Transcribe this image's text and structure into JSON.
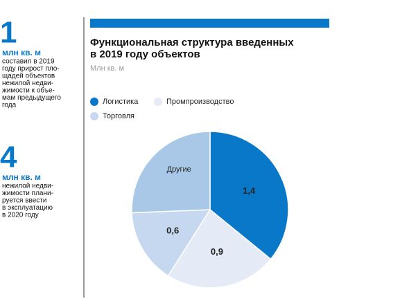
{
  "sidebar": [
    {
      "number": "1",
      "unit": "млн кв. м",
      "lines": [
        "составил в 2019",
        "году прирост пло-",
        "щадей объектов",
        "нежилой недви-",
        "жимости к объе-",
        "мам предыдущего",
        "года"
      ]
    },
    {
      "number": "4",
      "unit": "млн кв. м",
      "lines": [
        "нежилой недви-",
        "жимости плани-",
        "руется ввести",
        "в эксплуатацию",
        "в 2020 году"
      ]
    }
  ],
  "chart_data": {
    "type": "pie",
    "title": [
      "Функциональная структура введенных",
      "в 2019 году объектов"
    ],
    "subtitle": "Млн кв. м",
    "categories": [
      "Логистика",
      "Промпроизводство",
      "Торговля",
      "Другие"
    ],
    "values": [
      1.4,
      0.9,
      0.6,
      1.0
    ],
    "value_labels": [
      "1,4",
      "0,9",
      "0,6",
      null
    ],
    "colors": [
      "#0a78c8",
      "#e4ebf7",
      "#c6d8f0",
      "#a9c8e8"
    ]
  }
}
